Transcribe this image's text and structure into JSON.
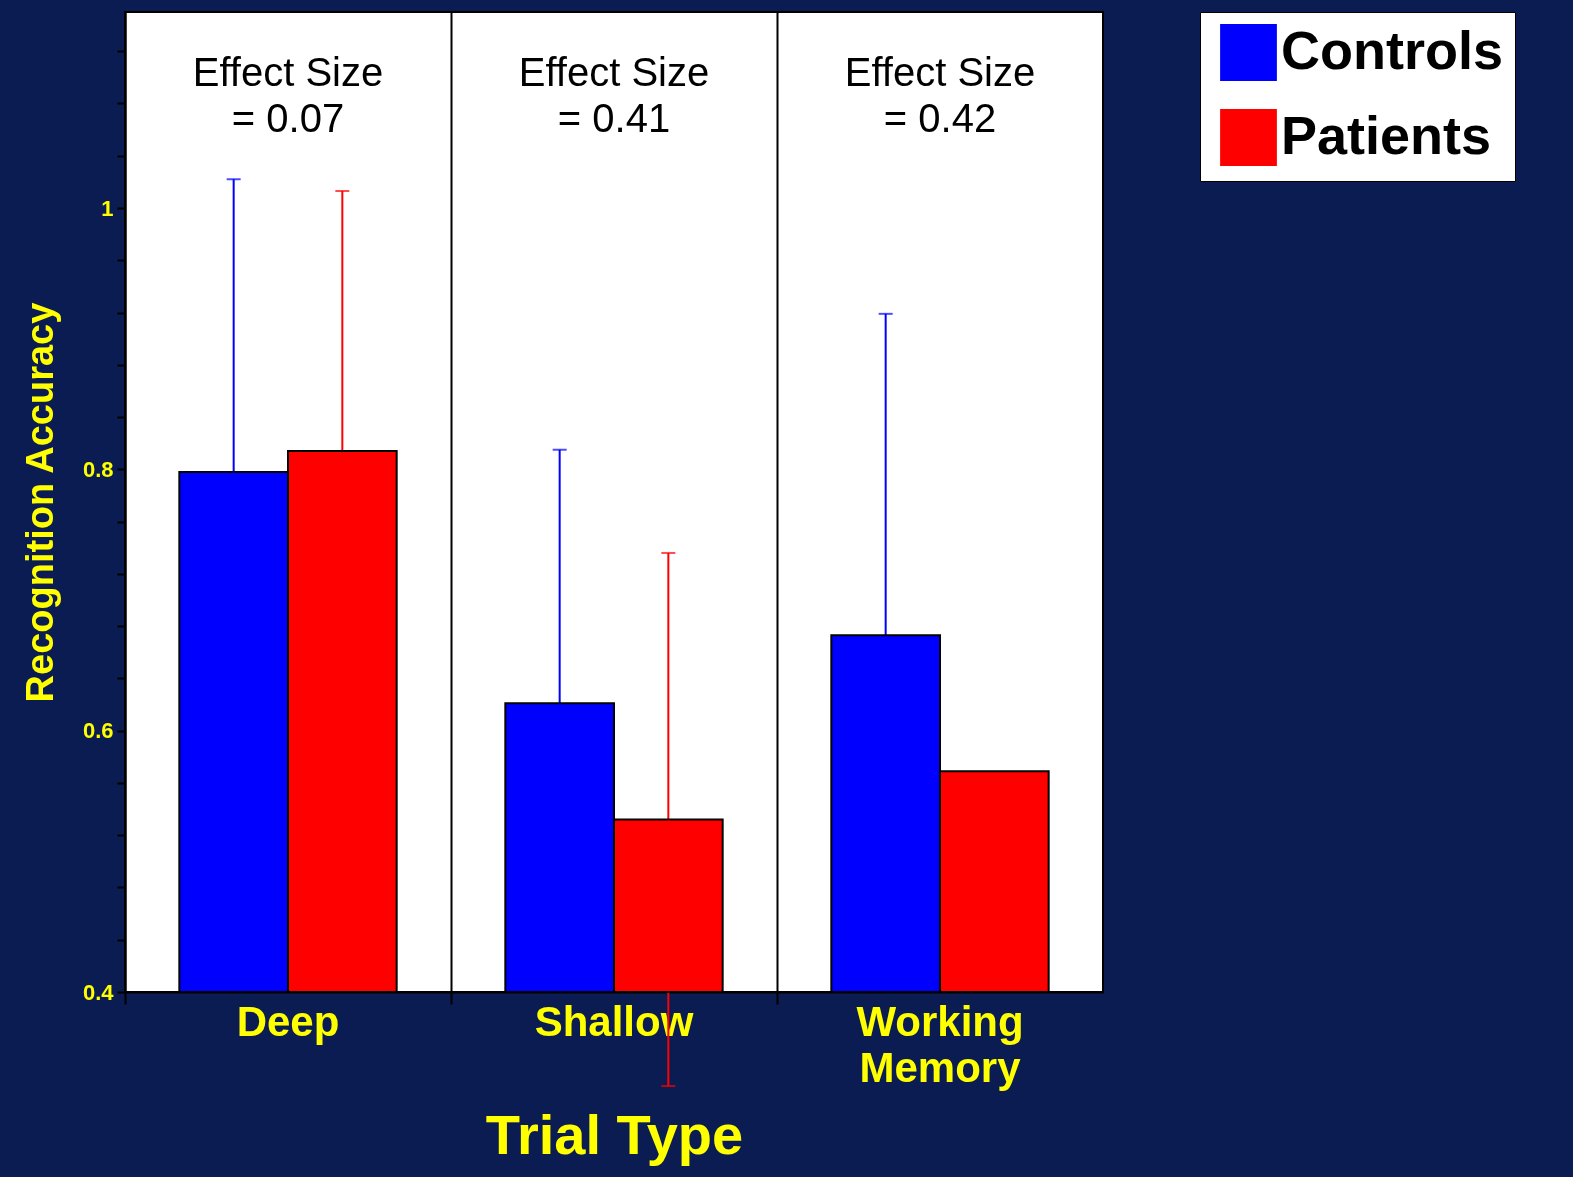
{
  "chart_data": {
    "type": "bar",
    "xlabel": "Trial Type",
    "ylabel": "Recognition Accuracy",
    "categories": [
      "Deep",
      "Shallow",
      "Working Memory"
    ],
    "series": [
      {
        "name": "Controls",
        "color": "#0000ff",
        "values": [
          0.798,
          0.621,
          0.673
        ],
        "errors": [
          0.224,
          0.194,
          0.246
        ]
      },
      {
        "name": "Patients",
        "color": "#ff0000",
        "values": [
          0.814,
          0.532,
          0.569
        ],
        "errors": [
          0.199,
          0.204,
          null
        ]
      }
    ],
    "ylim": [
      0.4,
      1.15
    ],
    "yticks": [
      0.4,
      {
        "value": 0.44,
        "label": null
      },
      {
        "value": 0.48,
        "label": null
      },
      {
        "value": 0.52,
        "label": null
      },
      {
        "value": 0.56,
        "label": null
      },
      0.6,
      {
        "value": 0.64,
        "label": null
      },
      {
        "value": 0.68,
        "label": null
      },
      {
        "value": 0.72,
        "label": null
      },
      {
        "value": 0.76,
        "label": null
      },
      0.8,
      {
        "value": 0.84,
        "label": null
      },
      {
        "value": 0.88,
        "label": null
      },
      {
        "value": 0.92,
        "label": null
      },
      {
        "value": 0.96,
        "label": null
      },
      1,
      {
        "value": 1.04,
        "label": null
      },
      {
        "value": 1.08,
        "label": null
      },
      {
        "value": 1.12,
        "label": null
      }
    ],
    "annotations": [
      "Effect Size\n= 0.07",
      "Effect Size\n= 0.41",
      "Effect Size\n= 0.42"
    ],
    "grid": "x",
    "legend": "top right"
  }
}
